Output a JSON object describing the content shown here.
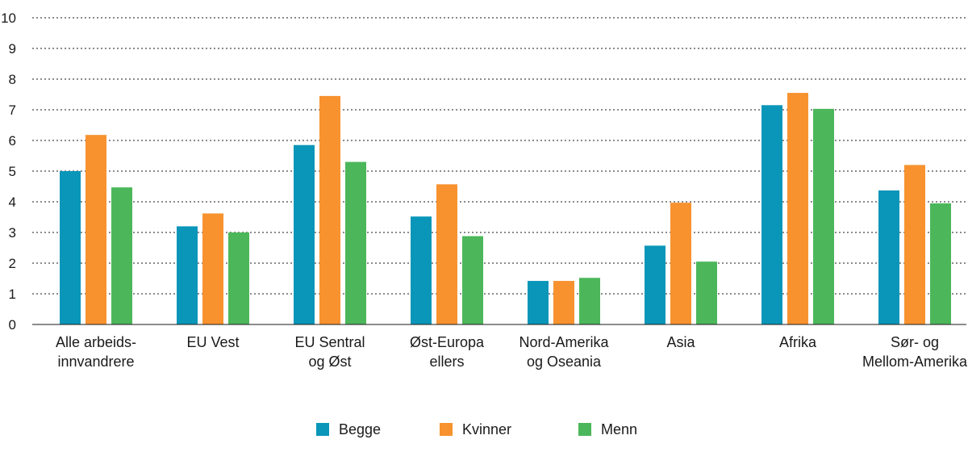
{
  "chart_data": {
    "type": "bar",
    "title": "",
    "xlabel": "",
    "ylabel": "",
    "ylim": [
      0,
      10
    ],
    "yticks": [
      0,
      1,
      2,
      3,
      4,
      5,
      6,
      7,
      8,
      9,
      10
    ],
    "grid": true,
    "legend_position": "bottom",
    "categories": [
      [
        "Alle arbeids-",
        "innvandrere"
      ],
      [
        "EU Vest"
      ],
      [
        "EU Sentral",
        "og Øst"
      ],
      [
        "Øst-Europa",
        "ellers"
      ],
      [
        "Nord-Amerika",
        "og Oseania"
      ],
      [
        "Asia"
      ],
      [
        "Afrika"
      ],
      [
        "Sør- og",
        "Mellom-Amerika"
      ]
    ],
    "series": [
      {
        "name": "Begge",
        "color": "#0a96b9",
        "values": [
          5.0,
          3.2,
          5.85,
          3.52,
          1.42,
          2.57,
          7.15,
          4.37
        ]
      },
      {
        "name": "Kvinner",
        "color": "#f7922f",
        "values": [
          6.18,
          3.62,
          7.45,
          4.57,
          1.42,
          3.97,
          7.55,
          5.2
        ]
      },
      {
        "name": "Menn",
        "color": "#4cb75a",
        "values": [
          4.47,
          3.0,
          5.3,
          2.88,
          1.52,
          2.05,
          7.03,
          3.95
        ]
      }
    ]
  }
}
